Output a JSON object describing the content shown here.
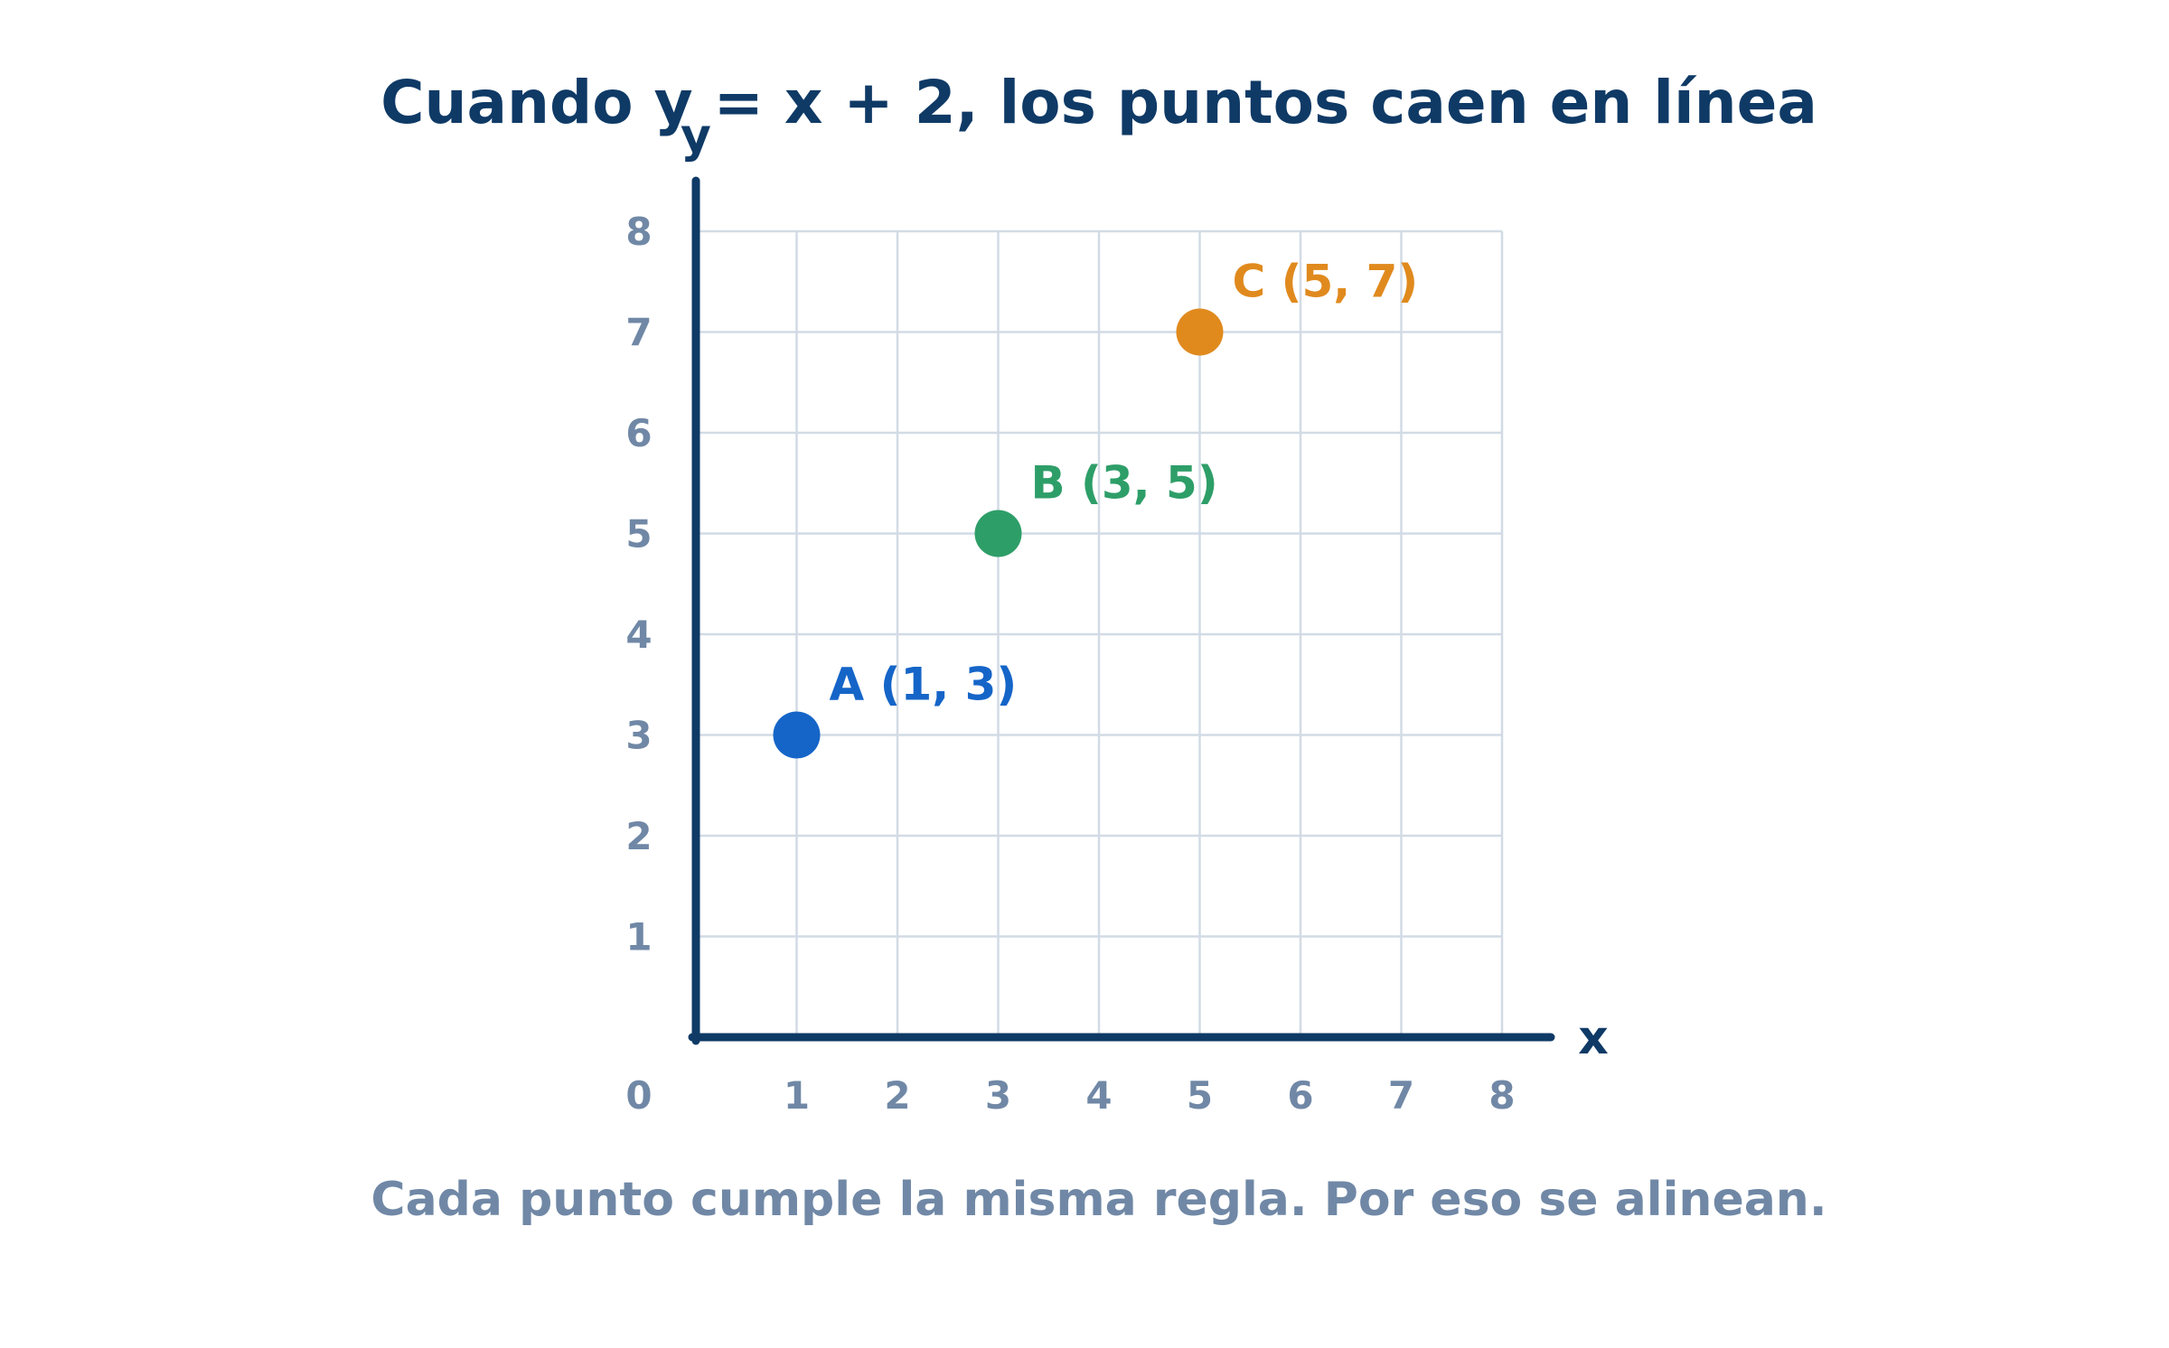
{
  "title": "Cuando y = x + 2, los puntos caen en línea",
  "caption": "Cada punto cumple la misma regla. Por eso se alinean.",
  "chart_data": {
    "type": "scatter",
    "title": "Cuando y = x + 2, los puntos caen en línea",
    "xlabel": "x",
    "ylabel": "y",
    "xlim": [
      0,
      8
    ],
    "ylim": [
      0,
      8
    ],
    "grid": true,
    "origin_label": "0",
    "x_ticks": [
      "1",
      "2",
      "3",
      "4",
      "5",
      "6",
      "7",
      "8"
    ],
    "y_ticks": [
      "1",
      "2",
      "3",
      "4",
      "5",
      "6",
      "7",
      "8"
    ],
    "points": [
      {
        "label": "A (1, 3)",
        "x": 1,
        "y": 3,
        "color": "#1565c8"
      },
      {
        "label": "B (3, 5)",
        "x": 3,
        "y": 5,
        "color": "#2e9e68"
      },
      {
        "label": "C (5, 7)",
        "x": 5,
        "y": 7,
        "color": "#e08a1e"
      }
    ]
  },
  "colors": {
    "axis": "#0f3a66",
    "grid": "#d2dbe5",
    "tick": "#7088a6"
  }
}
